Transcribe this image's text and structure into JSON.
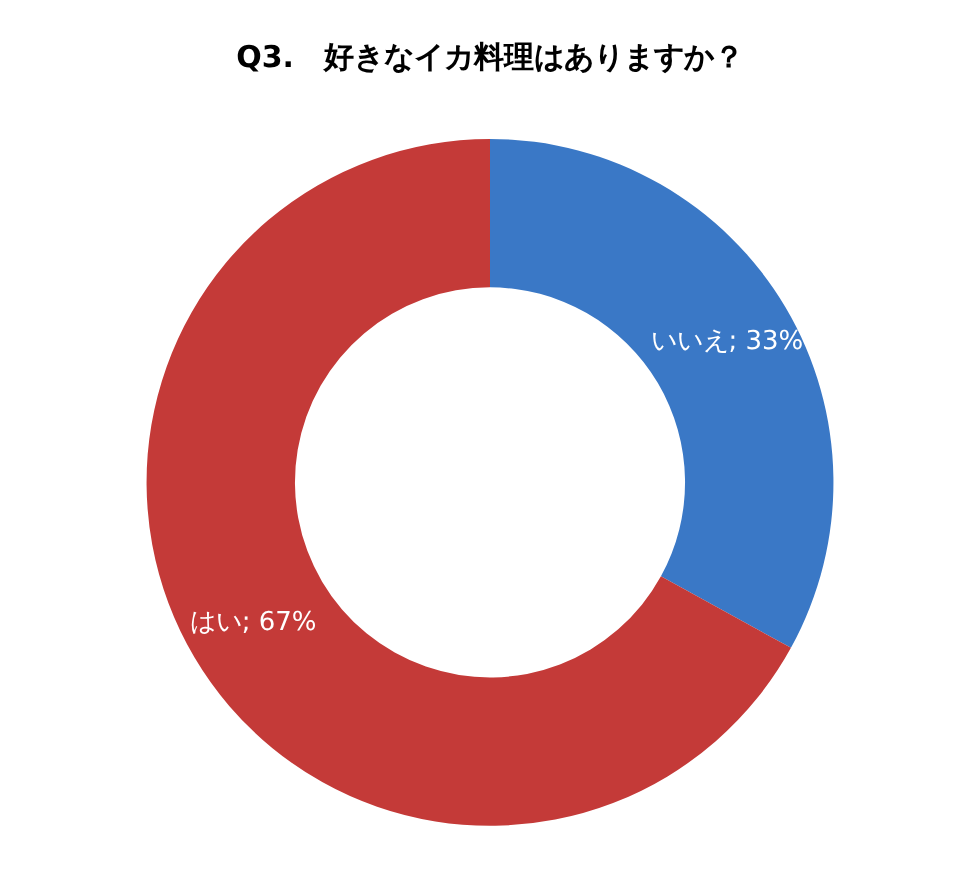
{
  "chart_data": {
    "type": "donut",
    "title": "Q3.　好きなイカ料理はありますか？",
    "categories": [
      "いいえ",
      "はい"
    ],
    "values": [
      33,
      67
    ],
    "colors": [
      "#3a78c6",
      "#c43a38"
    ],
    "value_labels": [
      "; 33%",
      "; 67%"
    ],
    "legend": false
  }
}
